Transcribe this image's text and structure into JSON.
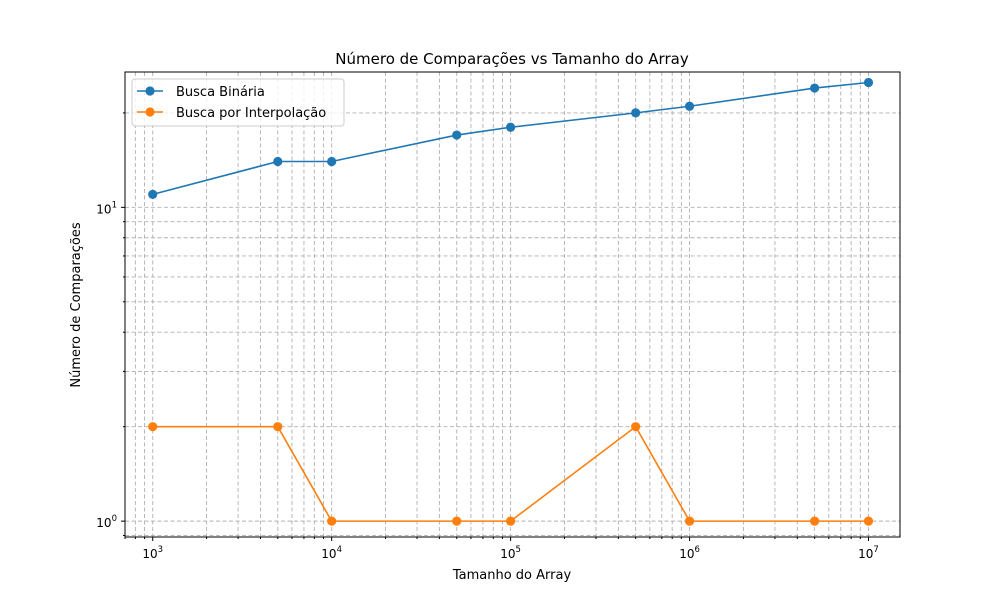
{
  "chart_data": {
    "type": "line",
    "title": "Número de Comparações vs Tamanho do Array",
    "xlabel": "Tamanho do Array",
    "ylabel": "Número de Comparações",
    "x_scale": "log",
    "y_scale": "log",
    "xlim": [
      700,
      15000000
    ],
    "ylim": [
      0.89,
      27
    ],
    "grid": true,
    "legend_position": "top-left",
    "x": [
      1000,
      5000,
      10000,
      50000,
      100000,
      500000,
      1000000,
      5000000,
      10000000
    ],
    "x_ticks": [
      {
        "value": 1000,
        "base": "10",
        "exp": "3"
      },
      {
        "value": 10000,
        "base": "10",
        "exp": "4"
      },
      {
        "value": 100000,
        "base": "10",
        "exp": "5"
      },
      {
        "value": 1000000,
        "base": "10",
        "exp": "6"
      },
      {
        "value": 10000000,
        "base": "10",
        "exp": "7"
      }
    ],
    "y_ticks": [
      {
        "value": 1,
        "base": "10",
        "exp": "0"
      },
      {
        "value": 10,
        "base": "10",
        "exp": "1"
      }
    ],
    "series": [
      {
        "name": "Busca Binária",
        "color": "#1f77b4",
        "values": [
          11,
          14,
          14,
          17,
          18,
          20,
          21,
          24,
          25
        ]
      },
      {
        "name": "Busca por Interpolação",
        "color": "#ff7f0e",
        "values": [
          2,
          2,
          1,
          1,
          1,
          2,
          1,
          1,
          1
        ]
      }
    ]
  }
}
